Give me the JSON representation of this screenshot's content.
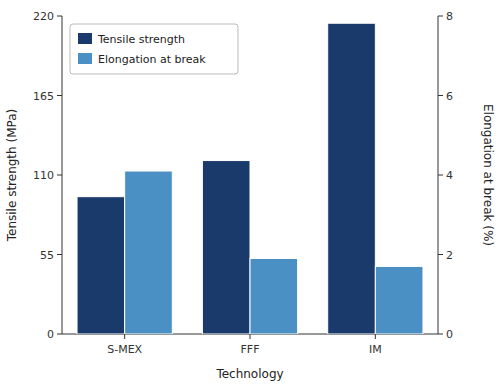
{
  "chart_data": {
    "type": "bar",
    "categories": [
      "S-MEX",
      "FFF",
      "IM"
    ],
    "series": [
      {
        "name": "Tensile strength",
        "color": "#1a3a6b",
        "values": [
          95,
          120,
          215
        ],
        "axis": "y"
      },
      {
        "name": "Elongation at break",
        "color": "#4a90c4",
        "values": [
          4.1,
          1.9,
          1.7
        ],
        "axis": "y2"
      }
    ],
    "xlabel": "Technology",
    "ylabel": "Tensile strength (MPa)",
    "y2label": "Elongation at break (%)",
    "ylim": [
      0,
      220
    ],
    "yticks": [
      0,
      55,
      110,
      165,
      220
    ],
    "y2lim": [
      0,
      8
    ],
    "y2ticks": [
      0,
      2,
      4,
      6,
      8
    ],
    "legend": "upper left",
    "grid": false
  }
}
